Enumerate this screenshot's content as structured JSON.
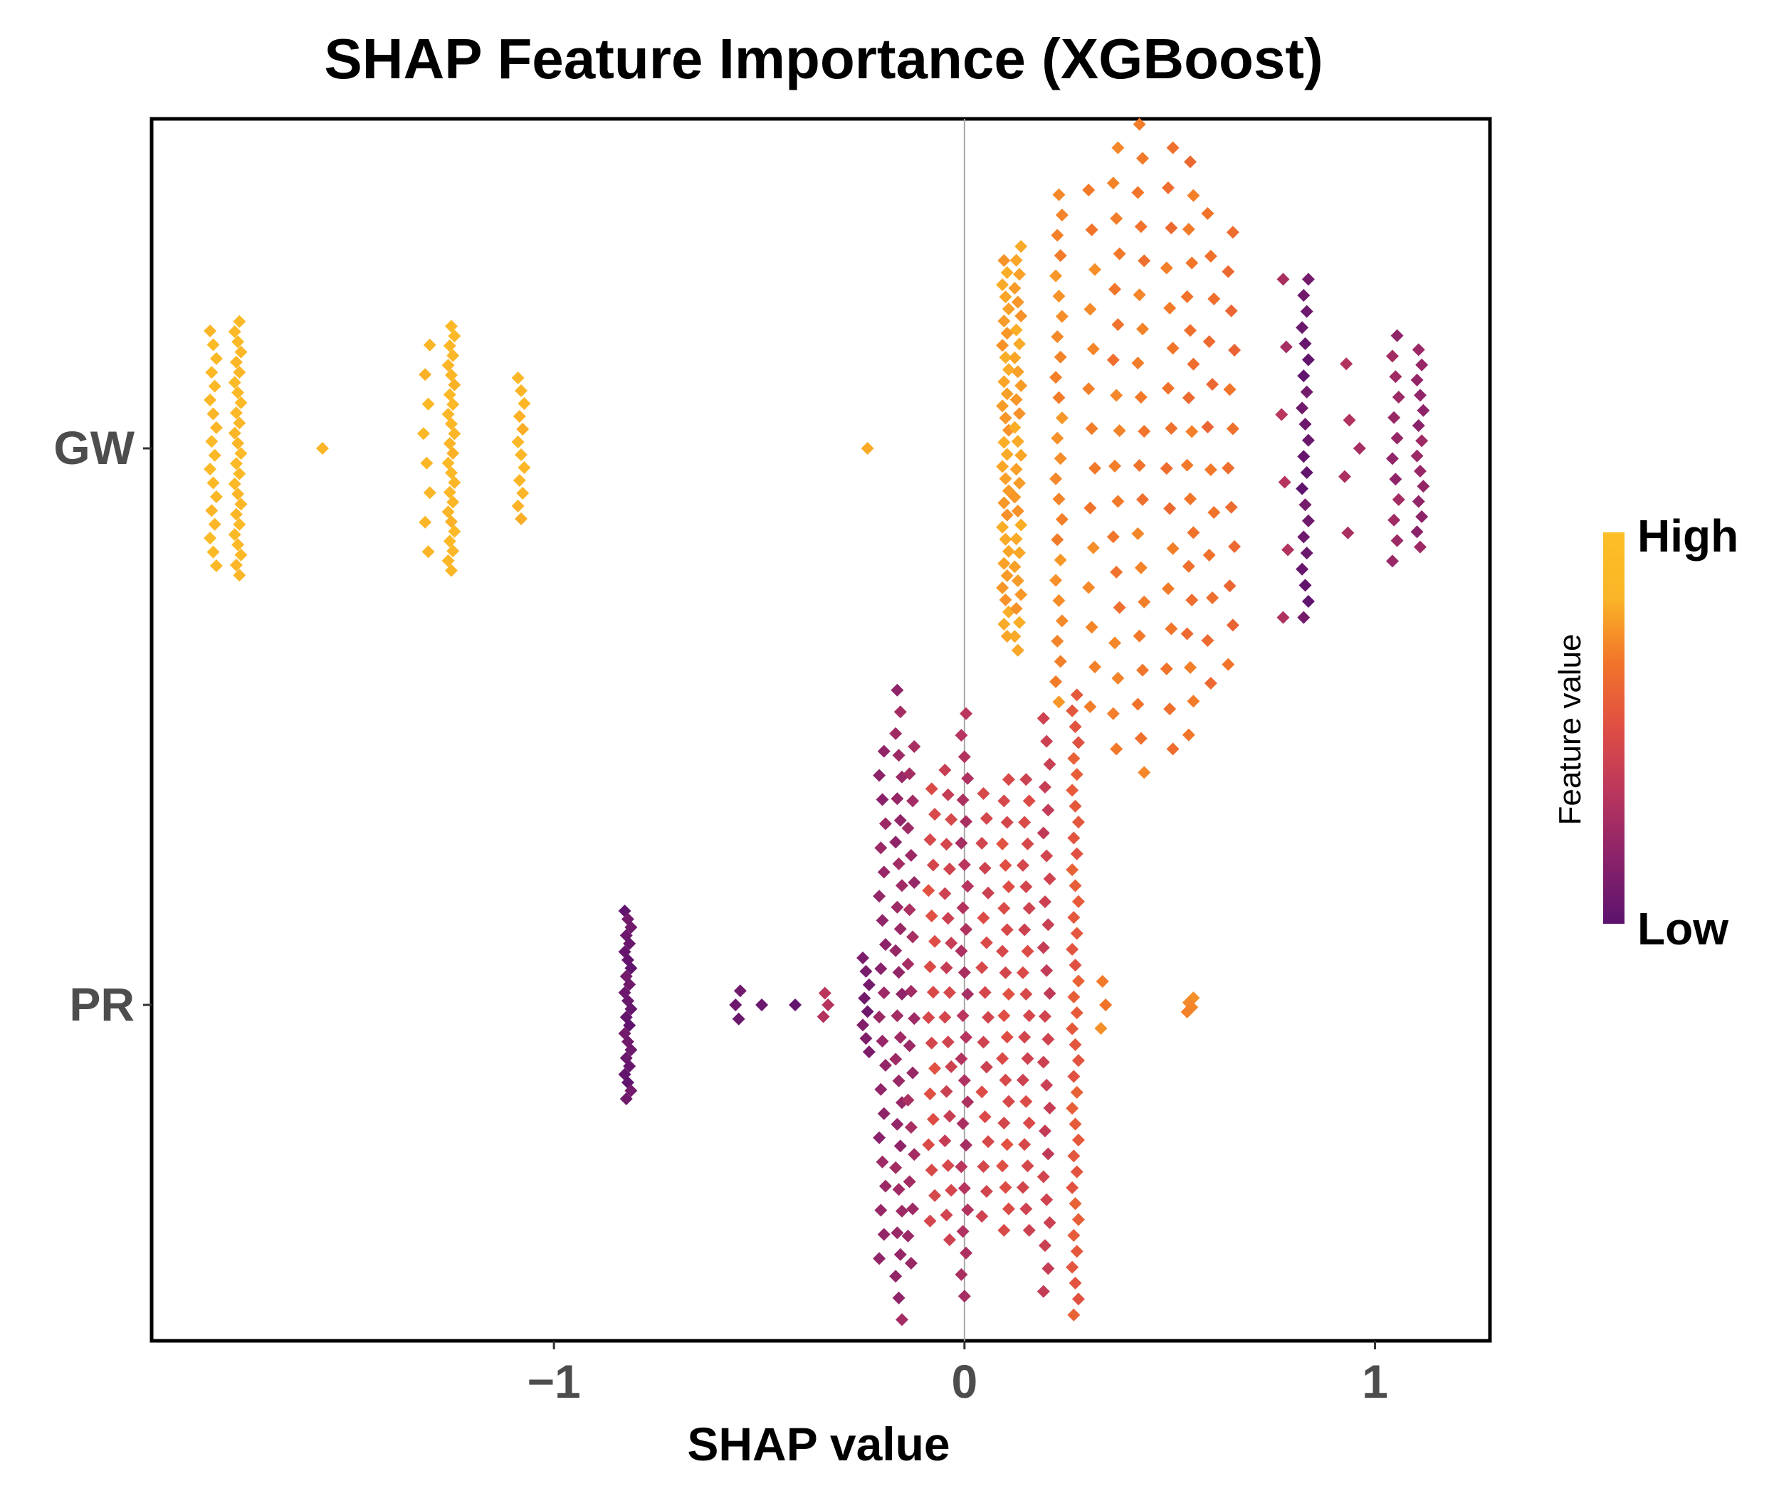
{
  "chart_data": {
    "type": "scatter",
    "subtype": "beeswarm",
    "title": "SHAP Feature Importance (XGBoost)",
    "xlabel": "SHAP value",
    "ylabel": "",
    "xlim": [
      -1.98,
      1.28
    ],
    "xticks": [
      -1,
      0,
      1
    ],
    "xtick_labels": [
      "−1",
      "0",
      "1"
    ],
    "features": [
      "GW",
      "PR"
    ],
    "zero_line": true,
    "grid": false,
    "legend": {
      "title": "Feature value",
      "high_label": "High",
      "low_label": "Low",
      "placement": "right",
      "colors": [
        "#5c136e",
        "#8a226a",
        "#b9365d",
        "#df4e44",
        "#f1742a",
        "#fbb527",
        "#fcbf26"
      ]
    },
    "series": [
      {
        "name": "GW",
        "clusters": [
          {
            "x": -1.83,
            "n": 18,
            "feature_value": 0.88,
            "spread": 0.5
          },
          {
            "x": -1.77,
            "n": 26,
            "feature_value": 0.88,
            "spread": 0.54
          },
          {
            "x": -1.56,
            "n": 1,
            "feature_value": 0.84,
            "spread": 0.0
          },
          {
            "x": -1.31,
            "n": 8,
            "feature_value": 0.86,
            "spread": 0.44
          },
          {
            "x": -1.25,
            "n": 26,
            "feature_value": 0.86,
            "spread": 0.52
          },
          {
            "x": -1.08,
            "n": 12,
            "feature_value": 0.85,
            "spread": 0.3
          },
          {
            "x": -0.24,
            "n": 1,
            "feature_value": 0.82,
            "spread": 0.0
          },
          {
            "x": 0.1,
            "n": 32,
            "feature_value": 0.78,
            "spread": 0.8
          },
          {
            "x": 0.13,
            "n": 30,
            "feature_value": 0.78,
            "spread": 0.86
          },
          {
            "x": 0.23,
            "n": 26,
            "feature_value": 0.72,
            "spread": 1.08
          },
          {
            "x": 0.31,
            "n": 14,
            "feature_value": 0.7,
            "spread": 1.1
          },
          {
            "x": 0.37,
            "n": 18,
            "feature_value": 0.68,
            "spread": 1.28
          },
          {
            "x": 0.43,
            "n": 20,
            "feature_value": 0.68,
            "spread": 1.38
          },
          {
            "x": 0.5,
            "n": 16,
            "feature_value": 0.66,
            "spread": 1.28
          },
          {
            "x": 0.55,
            "n": 18,
            "feature_value": 0.66,
            "spread": 1.22
          },
          {
            "x": 0.6,
            "n": 12,
            "feature_value": 0.64,
            "spread": 1.0
          },
          {
            "x": 0.65,
            "n": 12,
            "feature_value": 0.63,
            "spread": 0.92
          },
          {
            "x": 0.78,
            "n": 6,
            "feature_value": 0.3,
            "spread": 0.72
          },
          {
            "x": 0.83,
            "n": 22,
            "feature_value": 0.05,
            "spread": 0.72
          },
          {
            "x": 0.93,
            "n": 4,
            "feature_value": 0.3,
            "spread": 0.36
          },
          {
            "x": 0.97,
            "n": 1,
            "feature_value": 0.28,
            "spread": 0.0
          },
          {
            "x": 1.05,
            "n": 12,
            "feature_value": 0.22,
            "spread": 0.48
          },
          {
            "x": 1.11,
            "n": 14,
            "feature_value": 0.2,
            "spread": 0.42
          }
        ]
      },
      {
        "name": "PR",
        "clusters": [
          {
            "x": -0.82,
            "n": 24,
            "feature_value": 0.05,
            "spread": 0.4
          },
          {
            "x": -0.55,
            "n": 3,
            "feature_value": 0.05,
            "spread": 0.06
          },
          {
            "x": -0.49,
            "n": 1,
            "feature_value": 0.05,
            "spread": 0.0
          },
          {
            "x": -0.42,
            "n": 1,
            "feature_value": 0.05,
            "spread": 0.0
          },
          {
            "x": -0.34,
            "n": 3,
            "feature_value": 0.3,
            "spread": 0.05
          },
          {
            "x": -0.24,
            "n": 8,
            "feature_value": 0.1,
            "spread": 0.2
          },
          {
            "x": -0.2,
            "n": 22,
            "feature_value": 0.2,
            "spread": 1.08
          },
          {
            "x": -0.16,
            "n": 30,
            "feature_value": 0.22,
            "spread": 1.34
          },
          {
            "x": -0.13,
            "n": 20,
            "feature_value": 0.25,
            "spread": 1.1
          },
          {
            "x": -0.08,
            "n": 18,
            "feature_value": 0.48,
            "spread": 0.92
          },
          {
            "x": -0.04,
            "n": 20,
            "feature_value": 0.42,
            "spread": 1.0
          },
          {
            "x": 0.0,
            "n": 28,
            "feature_value": 0.3,
            "spread": 1.24
          },
          {
            "x": 0.05,
            "n": 18,
            "feature_value": 0.45,
            "spread": 0.9
          },
          {
            "x": 0.1,
            "n": 22,
            "feature_value": 0.48,
            "spread": 0.96
          },
          {
            "x": 0.15,
            "n": 22,
            "feature_value": 0.45,
            "spread": 0.96
          },
          {
            "x": 0.2,
            "n": 26,
            "feature_value": 0.4,
            "spread": 1.22
          },
          {
            "x": 0.27,
            "n": 40,
            "feature_value": 0.55,
            "spread": 1.32
          },
          {
            "x": 0.34,
            "n": 3,
            "feature_value": 0.7,
            "spread": 0.1
          },
          {
            "x": 0.55,
            "n": 4,
            "feature_value": 0.7,
            "spread": 0.03
          }
        ]
      }
    ]
  }
}
